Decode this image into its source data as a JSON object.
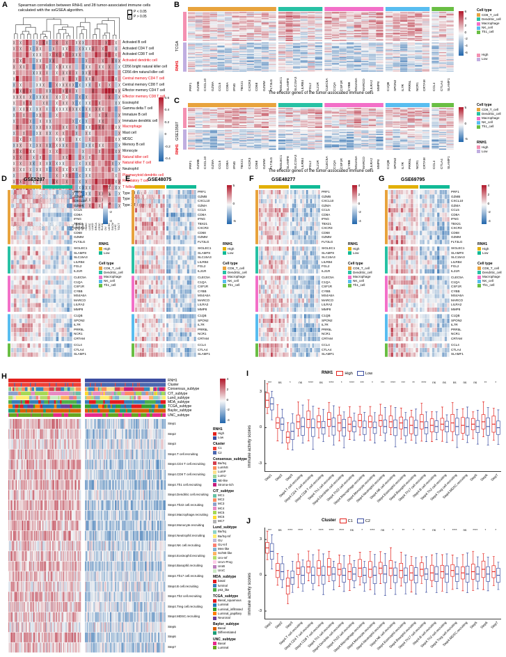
{
  "palette": {
    "heat_positive": "#B2182B",
    "heat_negative": "#2166AC",
    "heat_mid": "#F7F7F7",
    "red_text": "#E8000B"
  },
  "genes": [
    "PRF1",
    "GZMB",
    "CXCL10",
    "GZMA",
    "CCL5",
    "CD8A",
    "IFNG",
    "TBX21",
    "CXCR3",
    "CD68",
    "GZMM",
    "FLT3LG",
    "SIGLEC1",
    "SLAMF8",
    "SLC15A3",
    "LILRB4",
    "FGL2",
    "IL21R",
    "CLEC5A",
    "C1QA",
    "CSF1R",
    "CYBB",
    "MS4A6A",
    "MARCO",
    "LILRA2",
    "MMP8",
    "C1QB",
    "SPON2",
    "IL7R",
    "PRR5L",
    "NCR1",
    "CRTAM",
    "CCL4",
    "CTLA4",
    "SLAMF1"
  ],
  "cell_types": [
    {
      "label": "CD8_T_cell",
      "color": "#E8A33D",
      "count": 12
    },
    {
      "label": "Dendritic_cell",
      "color": "#27C1A4",
      "count": 6
    },
    {
      "label": "Macrophage",
      "color": "#F36FC8",
      "count": 8
    },
    {
      "label": "NK_cell",
      "color": "#58BDF0",
      "count": 6
    },
    {
      "label": "Th1_cell",
      "color": "#69BE43",
      "count": 3
    }
  ],
  "celltype_legend": {
    "title": "Cell type",
    "items": [
      {
        "label": "CD8_T_cell",
        "color": "#E8A33D"
      },
      {
        "label": "Dendritic_cell",
        "color": "#27C1A4"
      },
      {
        "label": "Macrophage",
        "color": "#F36FC8"
      },
      {
        "label": "NK_cell",
        "color": "#58BDF0"
      },
      {
        "label": "Th1_cell",
        "color": "#69BE43"
      }
    ]
  },
  "rnh1_bc": {
    "title": "RNH1",
    "items": [
      {
        "label": "High",
        "color": "#F490B1"
      },
      {
        "label": "Low",
        "color": "#C0AEE0"
      }
    ]
  },
  "rnh1_dg": {
    "title": "RNH1",
    "items": [
      {
        "label": "High",
        "color": "#E2B007"
      },
      {
        "label": "Low",
        "color": "#11BA96"
      }
    ]
  },
  "steps": [
    "Step1",
    "Step2",
    "Step3",
    "Step4.T cell.recruiting",
    "Step4.CD4 T cell.recruiting",
    "Step4.CD8 T cell.recruiting",
    "Step4.Th1 cell.recruiting",
    "Step4.Dendritic cell.recruiting",
    "Step4.Th22 cell.recruiting",
    "Step4.Macrophage.recruiting",
    "Step4.Monocyte.recruiting",
    "Step4.Neutrophil.recruiting",
    "Step4.NK cell.recruiting",
    "Step4.Eosinophil.recruiting",
    "Step4.Basophil.recruiting",
    "Step4.Th17 cell.recruiting",
    "Step4.B cell.recruiting",
    "Step4.Th2 cell.recruiting",
    "Step4.Treg cell.recruiting",
    "Step4.MDSC.recruiting",
    "Step5",
    "Step6",
    "Step7"
  ],
  "panelA": {
    "label": "A",
    "title1": "Spearman correlation between RNH1 and 28 tumor-associated immune cells",
    "title2": "calculated with the ssGSEA algorithm.",
    "p_sig": "P < 0.05",
    "p_ns": "P > 0.05",
    "x_char": "✕",
    "rows": [
      {
        "text": "Activated B cell"
      },
      {
        "text": "Activated CD4 T cell"
      },
      {
        "text": "Activated CD8 T cell"
      },
      {
        "text": "Activated dendritic cell",
        "red": true
      },
      {
        "text": "CD56 bright natural killer cell"
      },
      {
        "text": "CD56 dim natural killer cell"
      },
      {
        "text": "Central memory CD4 T cell",
        "red": true
      },
      {
        "text": "Central memory CD8 T cell"
      },
      {
        "text": "Effector memory CD4 T cell"
      },
      {
        "text": "Effector memory CD8 T cell",
        "red": true
      },
      {
        "text": "Eosinophil"
      },
      {
        "text": "Gamma delta T cell"
      },
      {
        "text": "Immature  B cell"
      },
      {
        "text": "Immature dendritic cell"
      },
      {
        "text": "Macrophage",
        "red": true
      },
      {
        "text": "Mast cell"
      },
      {
        "text": "MDSC"
      },
      {
        "text": "Memory B cell"
      },
      {
        "text": "Monocyte"
      },
      {
        "text": "Natural killer cell",
        "red": true
      },
      {
        "text": "Natural killer T cell",
        "red": true
      },
      {
        "text": "Neutrophil"
      },
      {
        "text": "Plasmacytoid dendritic cell",
        "red": true
      },
      {
        "text": "Regulatory T cell",
        "red": true
      },
      {
        "text": "T follicular helper cell",
        "red": true
      },
      {
        "text": "Type 1 T helper cell"
      },
      {
        "text": "Type 17 T helper cell"
      },
      {
        "text": "Type 2 T helper cell"
      }
    ],
    "cols": [
      "DLBC",
      "LAML",
      "ACC",
      "KICH",
      "UVM",
      "PCPG",
      "PAAD",
      "THCA",
      "SARC",
      "GBM",
      "LGG",
      "THYM",
      "MESO",
      "UCS",
      "CHOL",
      "READ",
      "COAD",
      "KIRP",
      "KIRC",
      "PRAD",
      "ESCA",
      "STAD",
      "HNSC",
      "LUSC",
      "LUAD",
      "BRCA",
      "CESC",
      "BLCA",
      "OV",
      "UCEC",
      "SKCM",
      "LIHC",
      "TGCT"
    ],
    "ticks": [
      "0.6",
      "0.4",
      "0.2",
      "0",
      "-0.2",
      "-0.4"
    ]
  },
  "panelB": {
    "label": "B",
    "dataset": "TCGA",
    "rnh1": "RNH1",
    "caption": "The effector genes of the tumor-associated immune cells",
    "ticks": [
      "6",
      "4",
      "2",
      "0",
      "-2",
      "-4",
      "-6"
    ]
  },
  "panelC": {
    "label": "C",
    "dataset": "GSE13507",
    "rnh1": "RNH1",
    "caption": "The effector genes of the tumor-associated immune cells",
    "ticks": [
      "5",
      "0",
      "-5"
    ]
  },
  "panelD": {
    "label": "D",
    "title": "GSE5287",
    "ticks": [
      "4",
      "2",
      "0",
      "-2",
      "-4"
    ]
  },
  "panelE": {
    "label": "E",
    "title": "GSE48075",
    "ticks": [
      "5",
      "0",
      "-5"
    ]
  },
  "panelF": {
    "label": "F",
    "title": "GSE48277",
    "ticks": [
      "4",
      "2",
      "0",
      "-2",
      "-4"
    ]
  },
  "panelG": {
    "label": "G",
    "title": "GSE69795",
    "ticks": [
      "4",
      "2",
      "0",
      "-2",
      "-4"
    ]
  },
  "panelH": {
    "label": "H",
    "ann_labels": [
      "RNH1",
      "Cluster",
      "Consensus_subtype",
      "CIT_subtype",
      "Lund_subtype",
      "MDA_subtype",
      "TCGA_subtype",
      "Baylor_subtype",
      "UNC_subtype"
    ],
    "ticks": [
      "4",
      "2",
      "0",
      "-2",
      "-4"
    ],
    "legends": [
      {
        "title": "RNH1",
        "items": [
          {
            "label": "High",
            "color": "#E3211C"
          },
          {
            "label": "Low",
            "color": "#3C4EA1"
          }
        ]
      },
      {
        "title": "Cluster",
        "items": [
          {
            "label": "C1",
            "color": "#EF4136"
          },
          {
            "label": "C2",
            "color": "#4A66AE"
          }
        ]
      },
      {
        "title": "Consensus_subtype",
        "items": [
          {
            "label": "Ba/Sq",
            "color": "#D53E4F"
          },
          {
            "label": "LumNS",
            "color": "#FC8D59"
          },
          {
            "label": "LumP",
            "color": "#FEE08B"
          },
          {
            "label": "LumU",
            "color": "#99D594"
          },
          {
            "label": "NE-like",
            "color": "#3288BD"
          },
          {
            "label": "Stroma-rich",
            "color": "#C51B7D"
          }
        ]
      },
      {
        "title": "CIT_subtype",
        "items": [
          {
            "label": "MC1",
            "color": "#66C2A5"
          },
          {
            "label": "MC2",
            "color": "#FC8D62"
          },
          {
            "label": "MC3",
            "color": "#8DA0CB"
          },
          {
            "label": "MC4",
            "color": "#E78AC3"
          },
          {
            "label": "MC5",
            "color": "#A6D854"
          },
          {
            "label": "MC6",
            "color": "#FFD92F"
          },
          {
            "label": "MC7",
            "color": "#B3B3B3"
          }
        ]
      },
      {
        "title": "Lund_subtype",
        "items": [
          {
            "label": "Ba/Sq",
            "color": "#8DD3C7"
          },
          {
            "label": "Ba/Sq-Inf",
            "color": "#FFED6F"
          },
          {
            "label": "GU",
            "color": "#BEBADA"
          },
          {
            "label": "GU-Inf",
            "color": "#FB8072"
          },
          {
            "label": "Mes-like",
            "color": "#80B1D3"
          },
          {
            "label": "Sc/NE-like",
            "color": "#FDB462"
          },
          {
            "label": "Uro-Inf",
            "color": "#B3DE69"
          },
          {
            "label": "UroA-Prog",
            "color": "#FCCDE5"
          },
          {
            "label": "UroB",
            "color": "#BC80BD"
          },
          {
            "label": "UroC",
            "color": "#CCEBC5"
          }
        ]
      },
      {
        "title": "MDA_subtype",
        "items": [
          {
            "label": "basal",
            "color": "#E41A1C"
          },
          {
            "label": "luminal",
            "color": "#377EB8"
          },
          {
            "label": "p53_like",
            "color": "#4DAF4A"
          }
        ]
      },
      {
        "title": "TCGA_subtype",
        "items": [
          {
            "label": "Basal_squamous",
            "color": "#E31A1C"
          },
          {
            "label": "Luminal",
            "color": "#1F78B4"
          },
          {
            "label": "Luminal_infiltrated",
            "color": "#33A02C"
          },
          {
            "label": "Luminal_papillary",
            "color": "#FF7F00"
          },
          {
            "label": "Neuronal",
            "color": "#6A3D9A"
          }
        ]
      },
      {
        "title": "Baylor_subtype",
        "items": [
          {
            "label": "Basal",
            "color": "#D95F02"
          },
          {
            "label": "Differentiated",
            "color": "#1B9E77"
          }
        ]
      },
      {
        "title": "UNC_subtype",
        "items": [
          {
            "label": "Basal",
            "color": "#E7298A"
          },
          {
            "label": "Luminal",
            "color": "#66A61E"
          }
        ]
      }
    ]
  },
  "panelI": {
    "label": "I",
    "legend_title": "RNH1",
    "groups": [
      {
        "label": "High",
        "color": "#E3211C"
      },
      {
        "label": "Low",
        "color": "#3C4EA1"
      }
    ],
    "ylabel": "Immune activity scores",
    "yticks": [
      "3",
      "0",
      "-3"
    ],
    "sig": [
      "***",
      "ns",
      "*",
      "ns",
      "****",
      "ns",
      "****",
      "*",
      "****",
      "***",
      "*",
      "***",
      "****",
      "***",
      "**",
      "****",
      "ns",
      "ns",
      "ns",
      "ns",
      "ns",
      "**",
      "*"
    ]
  },
  "panelJ": {
    "label": "J",
    "legend_title": "Cluster",
    "groups": [
      {
        "label": "C1",
        "color": "#E3211C"
      },
      {
        "label": "C2",
        "color": "#3C4EA1"
      }
    ],
    "ylabel": "Immune activity scores",
    "yticks": [
      "3",
      "0",
      "-3"
    ],
    "sig": [
      "***",
      "ns",
      "****",
      "****",
      "*",
      "****",
      "****",
      "****",
      "ns",
      "*",
      "****",
      "ns",
      "*",
      "**",
      "*",
      "**",
      "ns",
      "*",
      "****",
      "ns",
      "****",
      "*",
      "*"
    ]
  },
  "chart_data": [
    {
      "id": "A",
      "type": "heatmap",
      "title": "Spearman correlation between RNH1 and 28 tumor-associated immune cells (ssGSEA)",
      "rows": 28,
      "cols": 33,
      "value_range": [
        -0.4,
        0.6
      ],
      "note": "X marks cells with P > 0.05; individual correlation values not legible at source resolution"
    },
    {
      "id": "B",
      "type": "heatmap",
      "dataset": "TCGA",
      "cols": 35,
      "col_groups": [
        "CD8_T_cell",
        "Dendritic_cell",
        "Macrophage",
        "NK_cell",
        "Th1_cell"
      ],
      "row_groups": [
        "RNH1 High",
        "RNH1 Low"
      ],
      "value_range": [
        -6,
        6
      ]
    },
    {
      "id": "C",
      "type": "heatmap",
      "dataset": "GSE13507",
      "cols": 35,
      "row_groups": [
        "RNH1 High",
        "RNH1 Low"
      ],
      "value_range": [
        -5,
        5
      ]
    },
    {
      "id": "D",
      "type": "heatmap",
      "dataset": "GSE5287",
      "rows": 35,
      "col_groups": [
        "RNH1 High",
        "RNH1 Low"
      ],
      "value_range": [
        -4,
        4
      ]
    },
    {
      "id": "E",
      "type": "heatmap",
      "dataset": "GSE48075",
      "rows": 35,
      "col_groups": [
        "RNH1 High",
        "RNH1 Low"
      ],
      "value_range": [
        -5,
        5
      ]
    },
    {
      "id": "F",
      "type": "heatmap",
      "dataset": "GSE48277",
      "rows": 35,
      "col_groups": [
        "RNH1 High",
        "RNH1 Low"
      ],
      "value_range": [
        -4,
        4
      ]
    },
    {
      "id": "G",
      "type": "heatmap",
      "dataset": "GSE69795",
      "rows": 35,
      "col_groups": [
        "RNH1 High",
        "RNH1 Low"
      ],
      "value_range": [
        -4,
        4
      ]
    },
    {
      "id": "H",
      "type": "heatmap",
      "rows": 23,
      "row_labels": "steps",
      "col_groups": [
        "RNH1 High / C1",
        "RNH1 Low / C2"
      ],
      "value_range": [
        -4,
        4
      ]
    },
    {
      "id": "I",
      "type": "boxplot",
      "ylabel": "Immune activity scores",
      "ylim": [
        -3.5,
        3.8
      ],
      "groups": [
        "High",
        "Low"
      ],
      "categories": "steps",
      "medians": {
        "High": [
          2.3,
          0.4,
          -0.8,
          0.5,
          0.7,
          0.5,
          0.7,
          0.4,
          0.3,
          0.6,
          0.5,
          0.6,
          0.5,
          0.4,
          0.2,
          0.5,
          0.2,
          0.3,
          0.4,
          0.2,
          0.3,
          0.5,
          0.3
        ],
        "Low": [
          2.0,
          0.3,
          -0.3,
          0.1,
          0.0,
          0.0,
          0.1,
          0.0,
          0.1,
          0.0,
          0.0,
          0.1,
          0.0,
          0.0,
          0.0,
          0.0,
          0.1,
          0.1,
          0.1,
          0.1,
          0.1,
          0.1,
          0.0
        ]
      },
      "significance": [
        "***",
        "ns",
        "*",
        "ns",
        "****",
        "ns",
        "****",
        "*",
        "****",
        "***",
        "*",
        "***",
        "****",
        "***",
        "**",
        "****",
        "ns",
        "ns",
        "ns",
        "ns",
        "ns",
        "**",
        "*"
      ]
    },
    {
      "id": "J",
      "type": "boxplot",
      "ylabel": "Immune activity scores",
      "ylim": [
        -3.5,
        3.8
      ],
      "groups": [
        "C1",
        "C2"
      ],
      "categories": "steps",
      "medians": {
        "C1": [
          2.3,
          0.4,
          -0.9,
          0.6,
          0.7,
          0.6,
          0.7,
          0.5,
          0.3,
          0.6,
          0.5,
          0.6,
          0.6,
          0.4,
          0.2,
          0.5,
          0.2,
          0.3,
          0.4,
          0.2,
          0.3,
          0.5,
          0.3
        ],
        "C2": [
          2.0,
          0.3,
          -0.2,
          0.0,
          0.0,
          0.0,
          0.1,
          0.0,
          0.1,
          0.0,
          0.0,
          0.1,
          0.0,
          0.0,
          0.0,
          0.1,
          0.1,
          0.1,
          0.1,
          0.1,
          0.1,
          0.1,
          0.0
        ]
      },
      "significance": [
        "***",
        "ns",
        "****",
        "****",
        "*",
        "****",
        "****",
        "****",
        "ns",
        "*",
        "****",
        "ns",
        "*",
        "**",
        "*",
        "**",
        "ns",
        "*",
        "****",
        "ns",
        "****",
        "*",
        "*"
      ]
    }
  ]
}
